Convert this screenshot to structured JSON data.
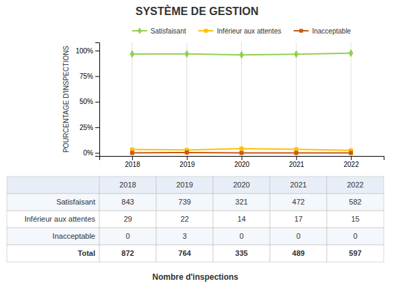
{
  "chart_data": {
    "type": "line",
    "title": "SYSTÈME DE GESTION",
    "ylabel": "POURCENTAGE D'INSPECTIONS",
    "xlabel": "Nombre d'inspections",
    "x": [
      2018,
      2019,
      2020,
      2021,
      2022
    ],
    "xlim": [
      2017.4,
      2022.6
    ],
    "xticks": [
      2018,
      2019,
      2020,
      2021,
      2022
    ],
    "ylim": [
      -3,
      108
    ],
    "yticks": [
      {
        "value": 0,
        "label": "0%"
      },
      {
        "value": 25,
        "label": "25%"
      },
      {
        "value": 50,
        "label": "50%"
      },
      {
        "value": 75,
        "label": "75%"
      },
      {
        "value": 100,
        "label": "100%"
      }
    ],
    "grid": "x",
    "legend": "top",
    "series": [
      {
        "name": "Satisfaisant",
        "color": "#92d050",
        "marker": "diamond",
        "values": [
          96.67,
          96.73,
          95.82,
          96.52,
          97.49
        ]
      },
      {
        "name": "Inférieur aux attentes",
        "color": "#ffc000",
        "marker": "square",
        "values": [
          3.33,
          2.88,
          4.18,
          3.48,
          2.51
        ]
      },
      {
        "name": "Inacceptable",
        "color": "#c55a11",
        "marker": "square",
        "values": [
          0.0,
          0.39,
          0.0,
          0.0,
          0.0
        ]
      }
    ],
    "table": {
      "rows": [
        {
          "name": "Satisfaisant",
          "values": [
            843,
            739,
            321,
            472,
            582
          ]
        },
        {
          "name": "Inférieur aux attentes",
          "values": [
            29,
            22,
            14,
            17,
            15
          ]
        },
        {
          "name": "Inacceptable",
          "values": [
            0,
            3,
            0,
            0,
            0
          ]
        },
        {
          "name": "Total",
          "values": [
            872,
            764,
            335,
            489,
            597
          ]
        }
      ]
    }
  }
}
